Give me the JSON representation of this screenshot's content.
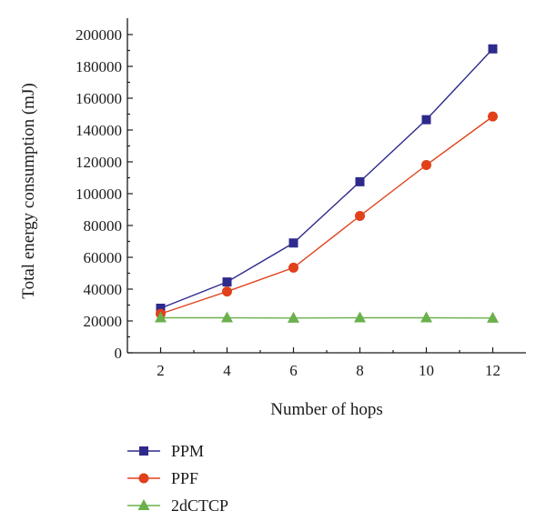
{
  "chart_data": {
    "type": "line",
    "xlabel": "Number of hops",
    "ylabel": "Total energy consumption (mJ)",
    "x": [
      2,
      4,
      6,
      8,
      10,
      12
    ],
    "xlim": [
      1,
      13
    ],
    "ylim": [
      0,
      200000
    ],
    "xticks": [
      2,
      4,
      6,
      8,
      10,
      12
    ],
    "yticks": [
      0,
      20000,
      40000,
      60000,
      80000,
      100000,
      120000,
      140000,
      160000,
      180000,
      200000
    ],
    "grid": false,
    "legend_position": "bottom-left, below plot",
    "series": [
      {
        "name": "PPM",
        "values": [
          28000,
          44500,
          69000,
          107500,
          146500,
          191000
        ],
        "color": "#2e2a8c",
        "marker": "square"
      },
      {
        "name": "PPF",
        "values": [
          24500,
          38500,
          53500,
          86000,
          118000,
          148500
        ],
        "color": "#e0401a",
        "marker": "circle"
      },
      {
        "name": "2dCTCP",
        "values": [
          22000,
          22000,
          21800,
          22000,
          22000,
          21800
        ],
        "color": "#6ab04c",
        "marker": "triangle"
      }
    ]
  }
}
